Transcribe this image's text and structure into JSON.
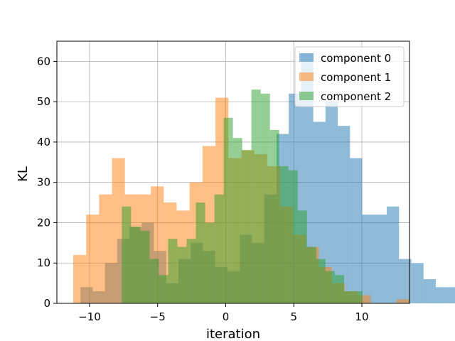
{
  "chart_data": {
    "type": "histogram",
    "xlabel": "iteration",
    "ylabel": "KL",
    "xlim": [
      -12.4,
      13.5
    ],
    "ylim": [
      0,
      65
    ],
    "xticks": [
      -10,
      -5,
      0,
      5,
      10
    ],
    "yticks": [
      0,
      10,
      20,
      30,
      40,
      50,
      60
    ],
    "grid": true,
    "legend_position": "upper right",
    "alpha": 0.5,
    "series": [
      {
        "name": "component 0",
        "color": "#1f77b4",
        "bin_start": -10.67,
        "bin_width": 0.9,
        "counts": [
          4,
          3,
          10,
          16,
          19,
          20,
          13,
          5,
          11,
          15,
          13,
          9,
          8,
          17,
          15,
          27,
          42,
          52,
          62,
          45,
          50,
          44,
          36,
          22,
          22,
          24,
          11,
          10,
          6,
          4,
          4
        ]
      },
      {
        "name": "component 1",
        "color": "#ff7f0e",
        "bin_start": -11.2,
        "bin_width": 0.95,
        "counts": [
          12,
          22,
          27,
          36,
          27,
          27,
          29,
          25,
          23,
          30,
          39,
          51,
          36,
          38,
          37,
          34,
          24,
          17,
          14,
          9,
          5,
          3,
          2,
          0,
          0,
          1
        ]
      },
      {
        "name": "component 2",
        "color": "#2ca02c",
        "bin_start": -7.63,
        "bin_width": 0.68,
        "counts": [
          24,
          19,
          18,
          11,
          7,
          16,
          14,
          16,
          25,
          20,
          27,
          46,
          41,
          38,
          53,
          52,
          43,
          34,
          33,
          23,
          14,
          11,
          8,
          7,
          3,
          3
        ]
      }
    ]
  }
}
